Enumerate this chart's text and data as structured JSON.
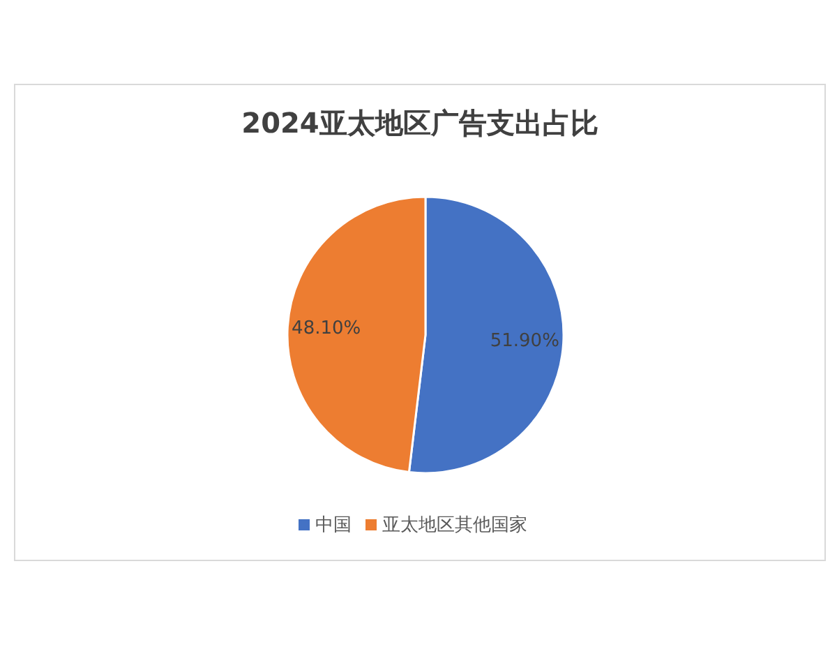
{
  "chart_data": {
    "type": "pie",
    "title": "2024亚太地区广告支出占比",
    "categories": [
      "中国",
      "亚太地区其他国家"
    ],
    "values": [
      51.9,
      48.1
    ],
    "colors": [
      "#4472c4",
      "#ed7d31"
    ],
    "value_labels": [
      "51.90%",
      "48.10%"
    ],
    "legend": "bottom"
  }
}
